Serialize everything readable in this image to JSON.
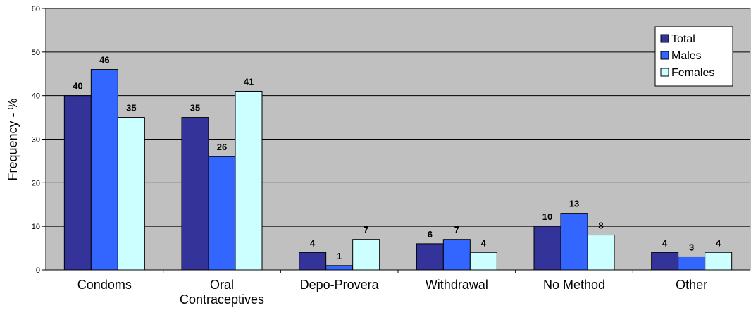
{
  "chart_data": {
    "type": "bar",
    "ylabel": "Frequency - %",
    "ylim": [
      0,
      60
    ],
    "yticks": [
      0,
      10,
      20,
      30,
      40,
      50,
      60
    ],
    "grid": true,
    "legend_position": "top-right",
    "categories": [
      [
        "Condoms"
      ],
      [
        "Oral",
        "Contraceptives"
      ],
      [
        "Depo-Provera"
      ],
      [
        "Withdrawal"
      ],
      [
        "No Method"
      ],
      [
        "Other"
      ]
    ],
    "series": [
      {
        "name": "Total",
        "color": "#333399",
        "values": [
          40,
          35,
          4,
          6,
          10,
          4
        ]
      },
      {
        "name": "Males",
        "color": "#3366ff",
        "values": [
          46,
          26,
          1,
          7,
          13,
          3
        ]
      },
      {
        "name": "Females",
        "color": "#ccffff",
        "values": [
          35,
          41,
          7,
          4,
          8,
          4
        ]
      }
    ],
    "plot_background": "#c0c0c0"
  }
}
